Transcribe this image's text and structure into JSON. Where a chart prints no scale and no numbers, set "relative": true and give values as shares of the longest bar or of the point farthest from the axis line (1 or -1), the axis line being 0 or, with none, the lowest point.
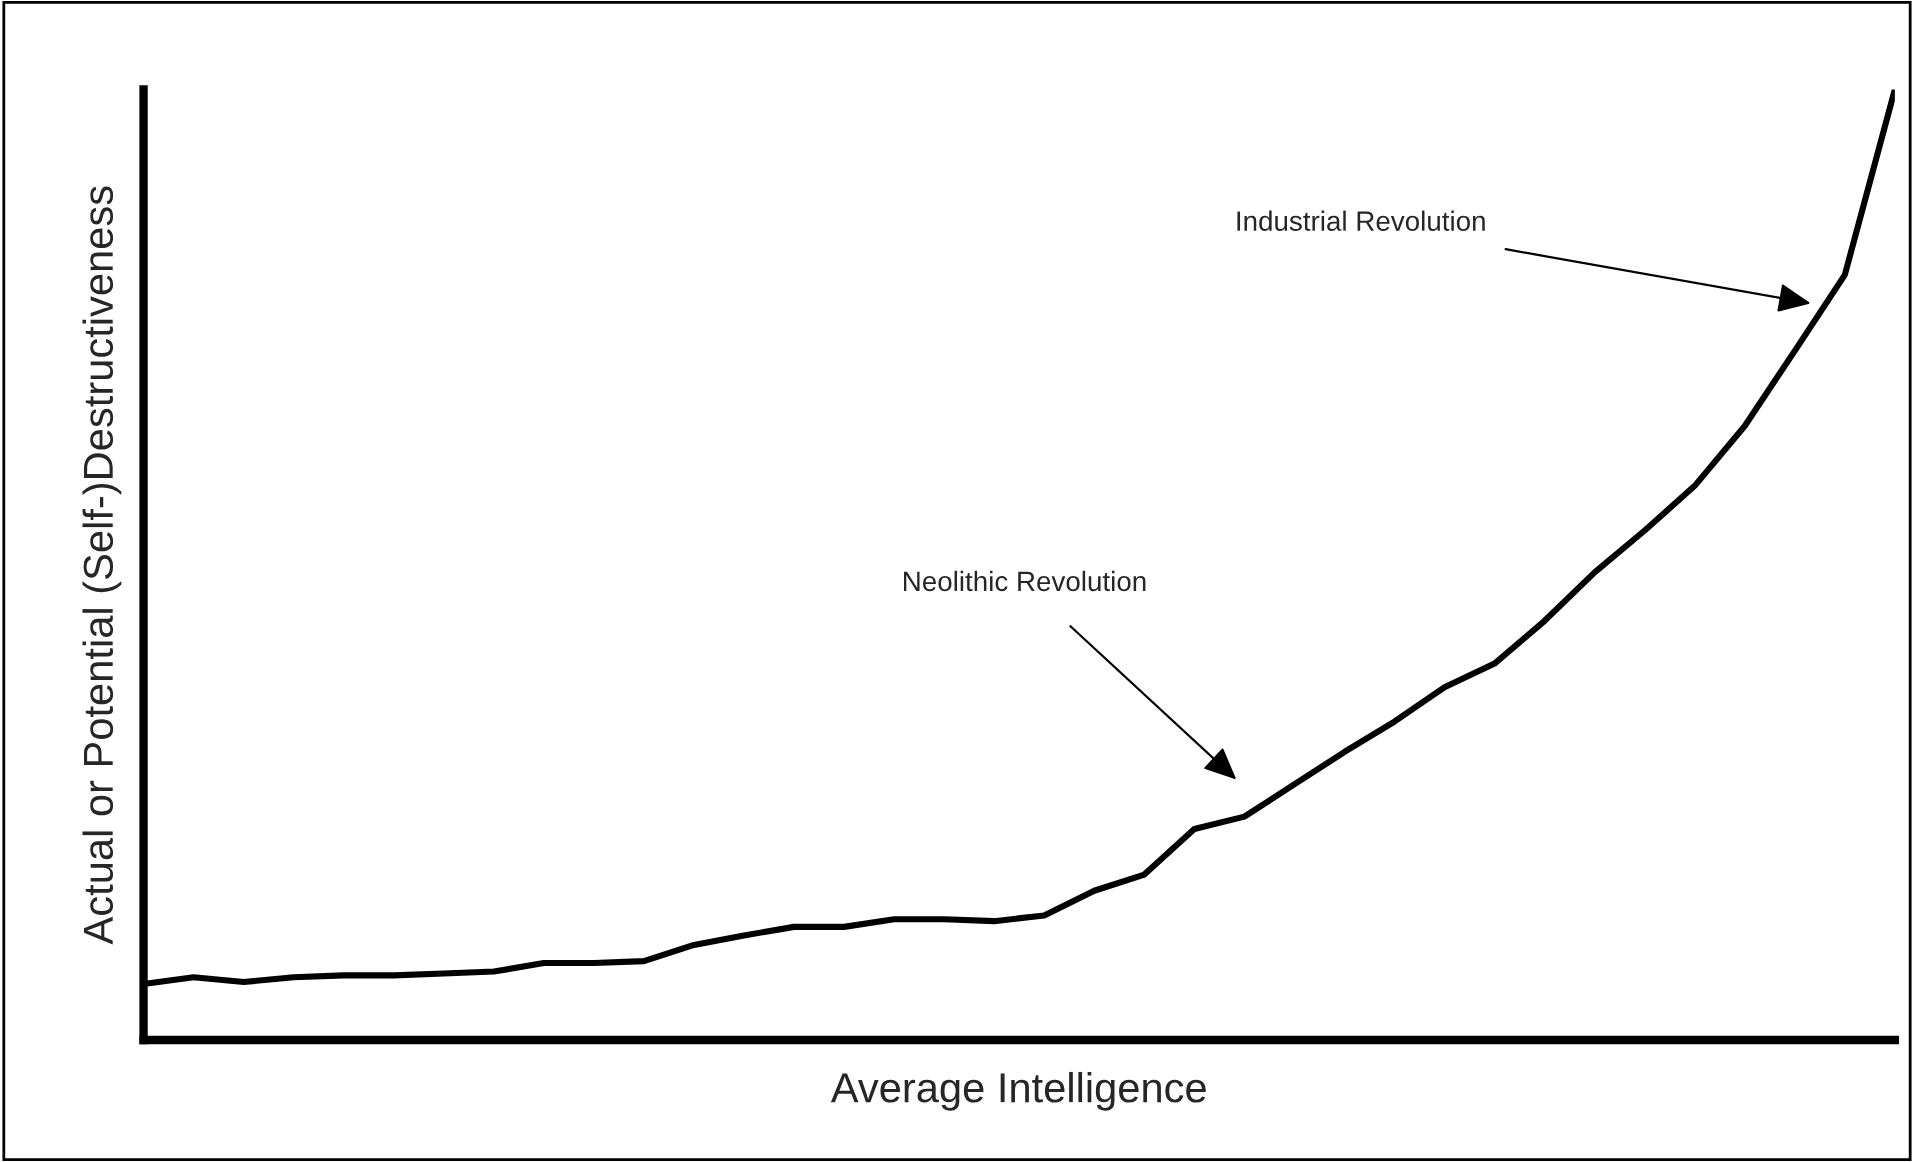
{
  "chart_data": {
    "type": "line",
    "relative": true,
    "xlabel": "Average Intelligence",
    "ylabel": "Actual or Potential (Self-)Destructiveness",
    "categories": [
      null,
      null,
      null,
      null,
      null,
      null,
      null,
      null,
      null,
      null,
      null,
      null,
      null,
      null,
      null,
      null,
      null,
      null,
      null,
      null,
      null,
      null,
      null,
      null,
      null,
      null,
      null,
      null,
      null,
      null,
      null,
      null,
      null,
      null,
      null,
      null
    ],
    "series": [
      {
        "color": "#000000",
        "values": [
          0.059,
          0.066,
          0.061,
          0.066,
          0.068,
          0.068,
          0.07,
          0.072,
          0.081,
          0.081,
          0.083,
          0.1,
          0.11,
          0.119,
          0.119,
          0.127,
          0.127,
          0.125,
          0.131,
          0.157,
          0.174,
          0.222,
          0.235,
          0.269,
          0.303,
          0.335,
          0.371,
          0.396,
          0.441,
          0.492,
          0.536,
          0.583,
          0.646,
          0.725,
          0.805,
          1
        ]
      }
    ],
    "annotations": [
      "Neolithic Revolution",
      "Industrial Revolution"
    ],
    "grid": false,
    "legend": false,
    "marker": "none",
    "line_style": "solid"
  }
}
